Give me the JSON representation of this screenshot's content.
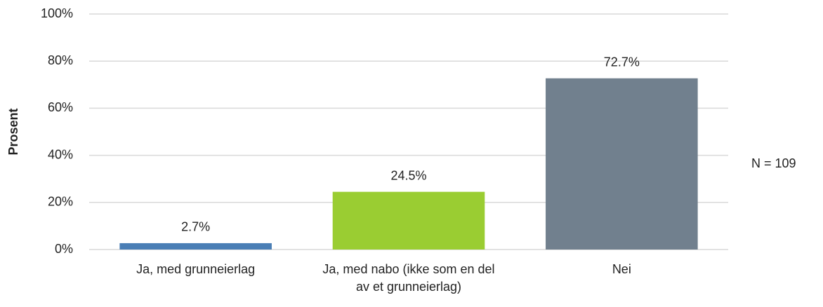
{
  "chart_data": {
    "type": "bar",
    "y_axis_label": "Prosent",
    "annotation": "N = 109",
    "categories": [
      "Ja, med grunneierlag",
      "Ja, med nabo (ikke som en del av et grunneierlag)",
      "Nei"
    ],
    "values": [
      2.7,
      24.5,
      72.7
    ],
    "value_labels": [
      "2.7%",
      "24.5%",
      "72.7%"
    ],
    "colors": [
      "#4a7eb5",
      "#9acd32",
      "#71808e"
    ],
    "ylim": [
      0,
      100
    ],
    "yticks": [
      {
        "value": 0,
        "label": "0%"
      },
      {
        "value": 20,
        "label": "20%"
      },
      {
        "value": 40,
        "label": "40%"
      },
      {
        "value": 60,
        "label": "60%"
      },
      {
        "value": 80,
        "label": "80%"
      },
      {
        "value": 100,
        "label": "100%"
      }
    ],
    "grid": true
  }
}
